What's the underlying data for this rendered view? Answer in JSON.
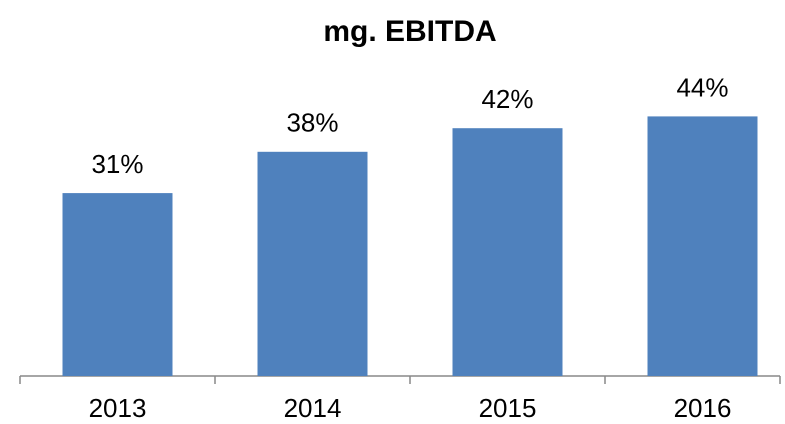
{
  "chart_data": {
    "type": "bar",
    "title": "mg. EBITDA",
    "categories": [
      "2013",
      "2014",
      "2015",
      "2016"
    ],
    "values": [
      31,
      38,
      42,
      44
    ],
    "value_labels": [
      "31%",
      "38%",
      "42%",
      "44%"
    ],
    "color": "#4f81bd"
  }
}
